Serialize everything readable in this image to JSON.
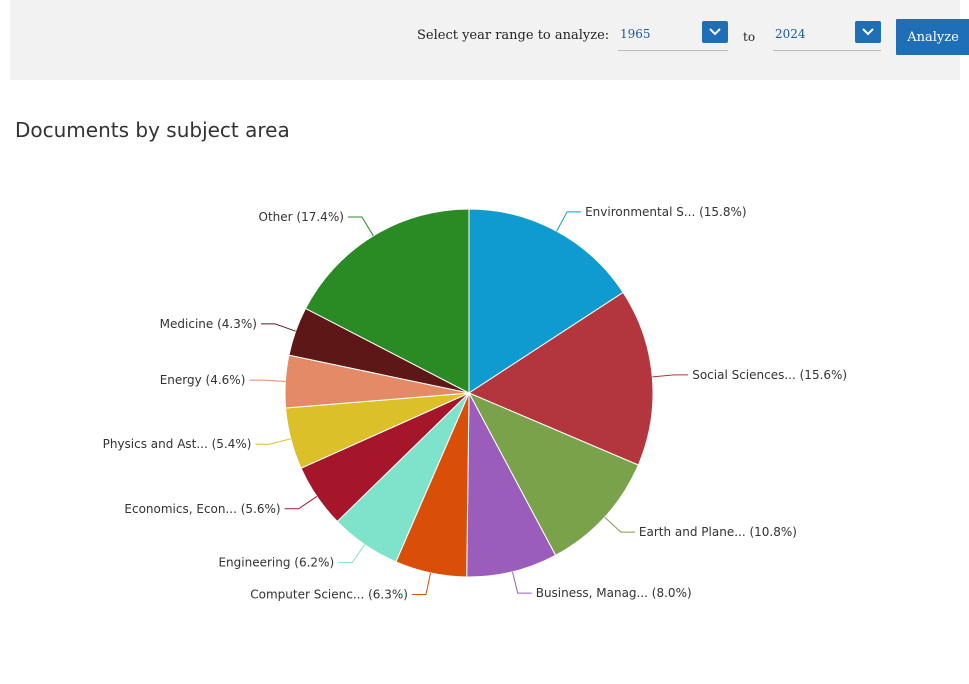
{
  "controls": {
    "range_label": "Select year range to analyze:",
    "from_year": "1965",
    "to_label": "to",
    "to_year": "2024",
    "analyze_label": "Analyze",
    "dropdown_icon": "chevron-down-icon",
    "accent_color": "#1f6fb6"
  },
  "chart_data": {
    "type": "pie",
    "title": "Documents by subject area",
    "slices": [
      {
        "label": "Environmental S... (15.8%)",
        "value": 15.8,
        "color": "#0f9bd0"
      },
      {
        "label": "Social Sciences... (15.6%)",
        "value": 15.6,
        "color": "#b3353d"
      },
      {
        "label": "Earth and Plane... (10.8%)",
        "value": 10.8,
        "color": "#79a24b"
      },
      {
        "label": "Business, Manag... (8.0%)",
        "value": 8.0,
        "color": "#9b5dbb"
      },
      {
        "label": "Computer Scienc... (6.3%)",
        "value": 6.3,
        "color": "#d94f07"
      },
      {
        "label": "Engineering (6.2%)",
        "value": 6.2,
        "color": "#7fe3cc"
      },
      {
        "label": "Economics, Econ... (5.6%)",
        "value": 5.6,
        "color": "#a6162a"
      },
      {
        "label": "Physics and Ast... (5.4%)",
        "value": 5.4,
        "color": "#dcc02a"
      },
      {
        "label": "Energy (4.6%)",
        "value": 4.6,
        "color": "#e58a66"
      },
      {
        "label": "Medicine (4.3%)",
        "value": 4.3,
        "color": "#5d1717"
      },
      {
        "label": "Other (17.4%)",
        "value": 17.4,
        "color": "#2a8b24"
      }
    ]
  }
}
